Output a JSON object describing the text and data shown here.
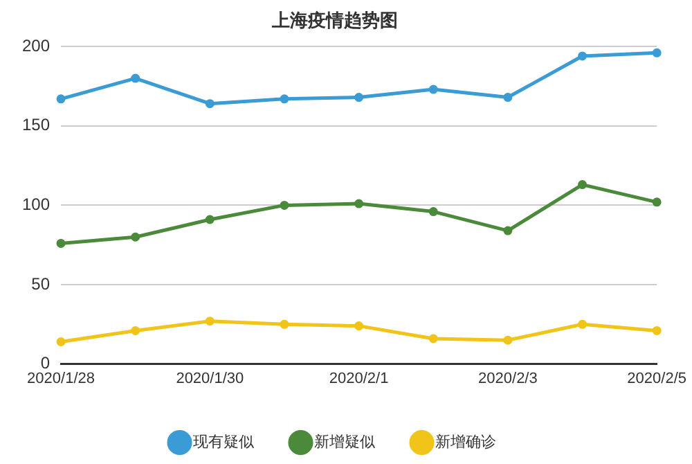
{
  "chart_data": {
    "type": "line",
    "title": "上海疫情趋势图",
    "categories": [
      "2020/1/28",
      null,
      "2020/1/30",
      null,
      "2020/2/1",
      null,
      "2020/2/3",
      null,
      "2020/2/5"
    ],
    "series": [
      {
        "name": "现有疑似",
        "color": "#3a9bd5",
        "values": [
          167,
          180,
          164,
          167,
          168,
          173,
          168,
          194,
          196
        ]
      },
      {
        "name": "新增疑似",
        "color": "#4a8a3a",
        "values": [
          76,
          80,
          91,
          100,
          101,
          96,
          84,
          113,
          102
        ]
      },
      {
        "name": "新增确诊",
        "color": "#f0c419",
        "values": [
          14,
          21,
          27,
          25,
          24,
          16,
          15,
          25,
          21
        ]
      }
    ],
    "ylim": [
      0,
      200
    ],
    "yticks": [
      0,
      50,
      100,
      150,
      200
    ],
    "grid": "y",
    "legend": "bottom",
    "marker": "circle",
    "line_style": "solid"
  }
}
